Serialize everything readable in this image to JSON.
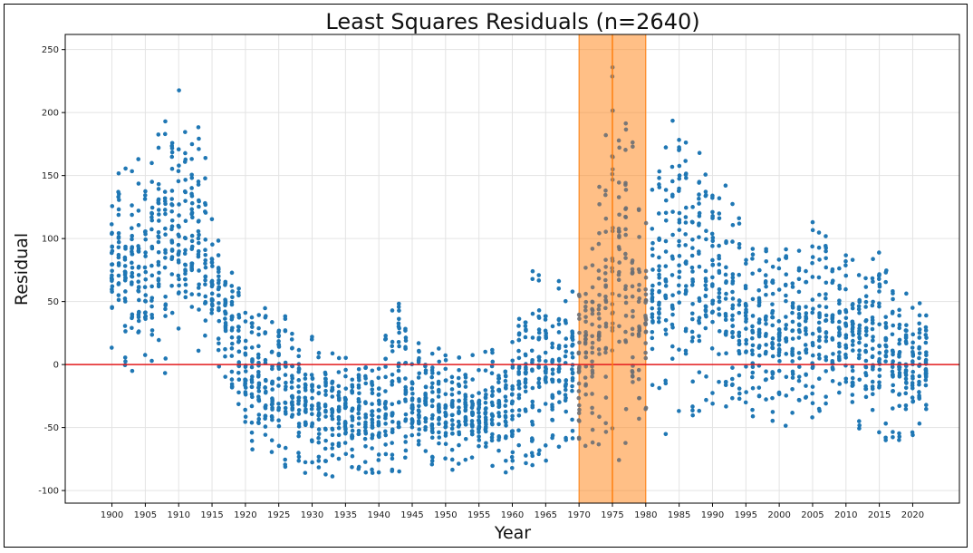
{
  "chart_data": {
    "type": "scatter",
    "title": "Least Squares Residuals (n=2640)",
    "xlabel": "Year",
    "ylabel": "Residual",
    "xlim": [
      1893,
      2027
    ],
    "ylim": [
      -110,
      262
    ],
    "x_ticks": [
      1900,
      1905,
      1910,
      1915,
      1920,
      1925,
      1930,
      1935,
      1940,
      1945,
      1950,
      1955,
      1960,
      1965,
      1970,
      1975,
      1980,
      1985,
      1990,
      1995,
      2000,
      2005,
      2010,
      2015,
      2020
    ],
    "y_ticks": [
      -100,
      -50,
      0,
      50,
      100,
      150,
      200,
      250
    ],
    "grid": true,
    "point_color": "#1f77b4",
    "zero_line": {
      "y": 0,
      "color": "#e41a1c"
    },
    "highlight_span": {
      "x_start": 1970,
      "x_end": 1980,
      "color": "#ff7f0e"
    },
    "vertical_line": {
      "x": 1975,
      "color": "#ff7f0e"
    },
    "year_range": [
      1900,
      2022
    ],
    "residual_bands": [
      {
        "year": 1900,
        "low": 5,
        "high": 150
      },
      {
        "year": 1905,
        "low": -25,
        "high": 170
      },
      {
        "year": 1910,
        "low": -5,
        "high": 229
      },
      {
        "year": 1913,
        "low": 0,
        "high": 200
      },
      {
        "year": 1915,
        "low": 0,
        "high": 130
      },
      {
        "year": 1918,
        "low": -20,
        "high": 80
      },
      {
        "year": 1920,
        "low": -65,
        "high": 45
      },
      {
        "year": 1925,
        "low": -80,
        "high": 45
      },
      {
        "year": 1930,
        "low": -88,
        "high": 28
      },
      {
        "year": 1935,
        "low": -92,
        "high": 15
      },
      {
        "year": 1940,
        "low": -88,
        "high": 5
      },
      {
        "year": 1943,
        "low": -85,
        "high": 66
      },
      {
        "year": 1945,
        "low": -85,
        "high": 20
      },
      {
        "year": 1950,
        "low": -88,
        "high": 12
      },
      {
        "year": 1955,
        "low": -88,
        "high": 8
      },
      {
        "year": 1960,
        "low": -85,
        "high": 20
      },
      {
        "year": 1962,
        "low": -80,
        "high": 97
      },
      {
        "year": 1965,
        "low": -80,
        "high": 72
      },
      {
        "year": 1970,
        "low": -70,
        "high": 60
      },
      {
        "year": 1975,
        "low": -80,
        "high": 245
      },
      {
        "year": 1980,
        "low": -60,
        "high": 145
      },
      {
        "year": 1985,
        "low": -55,
        "high": 221
      },
      {
        "year": 1990,
        "low": -40,
        "high": 165
      },
      {
        "year": 1995,
        "low": -40,
        "high": 110
      },
      {
        "year": 2000,
        "low": -50,
        "high": 90
      },
      {
        "year": 2005,
        "low": -50,
        "high": 115
      },
      {
        "year": 2010,
        "low": -45,
        "high": 87
      },
      {
        "year": 2015,
        "low": -60,
        "high": 98
      },
      {
        "year": 2020,
        "low": -70,
        "high": 55
      },
      {
        "year": 2022,
        "low": -45,
        "high": 48
      }
    ]
  }
}
